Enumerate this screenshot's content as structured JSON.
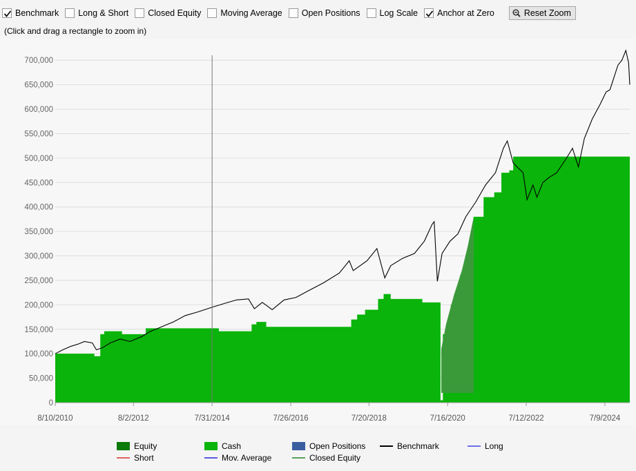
{
  "toolbar": {
    "checkboxes": [
      {
        "label": "Benchmark",
        "checked": true
      },
      {
        "label": "Long & Short",
        "checked": false
      },
      {
        "label": "Closed Equity",
        "checked": false
      },
      {
        "label": "Moving Average",
        "checked": false
      },
      {
        "label": "Open Positions",
        "checked": false
      },
      {
        "label": "Log Scale",
        "checked": false
      },
      {
        "label": "Anchor at Zero",
        "checked": true
      }
    ],
    "reset_zoom_label": "Reset Zoom",
    "reset_zoom_icon": "magnifier-minus-icon"
  },
  "hint": "(Click and drag a rectangle to zoom in)",
  "colors": {
    "equity": "#0a7a0a",
    "cash": "#0ab40a",
    "open_positions": "#3b5ea0",
    "benchmark": "#000000",
    "open_positions_overlay": "#3a9a3a",
    "grid": "#dedede",
    "cursor_line": "#777777",
    "short": "#e06060",
    "long": "#6f6fe8",
    "mov_average": "#5a5ae0",
    "closed_equity": "#5aa05a"
  },
  "chart_data": {
    "type": "area",
    "y_ticks": [
      "0",
      "50,000",
      "100,000",
      "150,000",
      "200,000",
      "250,000",
      "300,000",
      "350,000",
      "400,000",
      "450,000",
      "500,000",
      "550,000",
      "600,000",
      "650,000",
      "700,000"
    ],
    "x_ticks": [
      "8/10/2010",
      "8/2/2012",
      "7/31/2014",
      "7/26/2016",
      "7/20/2018",
      "7/16/2020",
      "7/12/2022",
      "7/9/2024"
    ],
    "x_tick_years": [
      2010.61,
      2012.59,
      2014.58,
      2016.57,
      2018.55,
      2020.54,
      2022.53,
      2024.52
    ],
    "xlim": [
      2010.61,
      2025.15
    ],
    "ylim": [
      0,
      730000
    ],
    "crosshair_year": 2014.58,
    "cash_steps": [
      [
        2010.61,
        100000
      ],
      [
        2011.6,
        95000
      ],
      [
        2011.75,
        140000
      ],
      [
        2011.85,
        146000
      ],
      [
        2012.3,
        140000
      ],
      [
        2012.9,
        152000
      ],
      [
        2014.75,
        146000
      ],
      [
        2015.58,
        160000
      ],
      [
        2015.7,
        165000
      ],
      [
        2015.95,
        155000
      ],
      [
        2018.1,
        170000
      ],
      [
        2018.25,
        180000
      ],
      [
        2018.45,
        190000
      ],
      [
        2018.78,
        212000
      ],
      [
        2018.92,
        222000
      ],
      [
        2019.1,
        212000
      ],
      [
        2019.9,
        205000
      ],
      [
        2020.36,
        5000
      ],
      [
        2020.42,
        140000
      ],
      [
        2020.62,
        200000
      ],
      [
        2020.85,
        260000
      ],
      [
        2021.05,
        300000
      ],
      [
        2021.2,
        380000
      ],
      [
        2021.45,
        420000
      ],
      [
        2021.72,
        430000
      ],
      [
        2021.9,
        470000
      ],
      [
        2022.1,
        475000
      ],
      [
        2022.2,
        503000
      ],
      [
        2025.15,
        503000
      ]
    ],
    "open_positions_band": [
      [
        2020.38,
        20000,
        110000
      ],
      [
        2020.5,
        20000,
        160000
      ],
      [
        2020.7,
        20000,
        220000
      ],
      [
        2020.9,
        20000,
        270000
      ],
      [
        2021.05,
        20000,
        320000
      ],
      [
        2021.15,
        20000,
        360000
      ],
      [
        2021.2,
        20000,
        380000
      ]
    ],
    "benchmark": [
      [
        2010.61,
        100000
      ],
      [
        2010.8,
        108000
      ],
      [
        2011.0,
        115000
      ],
      [
        2011.2,
        120000
      ],
      [
        2011.35,
        125000
      ],
      [
        2011.55,
        122000
      ],
      [
        2011.65,
        108000
      ],
      [
        2011.8,
        112000
      ],
      [
        2012.0,
        122000
      ],
      [
        2012.25,
        130000
      ],
      [
        2012.5,
        125000
      ],
      [
        2012.8,
        135000
      ],
      [
        2013.0,
        145000
      ],
      [
        2013.3,
        155000
      ],
      [
        2013.6,
        165000
      ],
      [
        2013.9,
        178000
      ],
      [
        2014.2,
        185000
      ],
      [
        2014.58,
        195000
      ],
      [
        2014.9,
        203000
      ],
      [
        2015.2,
        210000
      ],
      [
        2015.5,
        212000
      ],
      [
        2015.65,
        192000
      ],
      [
        2015.85,
        205000
      ],
      [
        2016.1,
        190000
      ],
      [
        2016.4,
        210000
      ],
      [
        2016.7,
        215000
      ],
      [
        2017.0,
        228000
      ],
      [
        2017.4,
        245000
      ],
      [
        2017.8,
        265000
      ],
      [
        2018.05,
        290000
      ],
      [
        2018.15,
        270000
      ],
      [
        2018.5,
        290000
      ],
      [
        2018.75,
        315000
      ],
      [
        2018.95,
        255000
      ],
      [
        2019.1,
        280000
      ],
      [
        2019.4,
        295000
      ],
      [
        2019.7,
        305000
      ],
      [
        2019.95,
        330000
      ],
      [
        2020.15,
        365000
      ],
      [
        2020.2,
        370000
      ],
      [
        2020.28,
        248000
      ],
      [
        2020.4,
        305000
      ],
      [
        2020.6,
        330000
      ],
      [
        2020.8,
        345000
      ],
      [
        2021.0,
        380000
      ],
      [
        2021.25,
        410000
      ],
      [
        2021.5,
        445000
      ],
      [
        2021.75,
        470000
      ],
      [
        2021.95,
        520000
      ],
      [
        2022.05,
        535000
      ],
      [
        2022.2,
        490000
      ],
      [
        2022.45,
        470000
      ],
      [
        2022.55,
        415000
      ],
      [
        2022.7,
        445000
      ],
      [
        2022.8,
        420000
      ],
      [
        2022.95,
        450000
      ],
      [
        2023.1,
        460000
      ],
      [
        2023.3,
        470000
      ],
      [
        2023.55,
        500000
      ],
      [
        2023.7,
        520000
      ],
      [
        2023.85,
        482000
      ],
      [
        2024.0,
        540000
      ],
      [
        2024.2,
        580000
      ],
      [
        2024.4,
        610000
      ],
      [
        2024.55,
        635000
      ],
      [
        2024.65,
        640000
      ],
      [
        2024.85,
        690000
      ],
      [
        2024.95,
        700000
      ],
      [
        2025.05,
        720000
      ],
      [
        2025.12,
        695000
      ],
      [
        2025.15,
        650000
      ]
    ]
  },
  "legend": [
    {
      "label": "Equity",
      "kind": "swatch",
      "color_key": "equity"
    },
    {
      "label": "Cash",
      "kind": "swatch",
      "color_key": "cash"
    },
    {
      "label": "Open Positions",
      "kind": "swatch",
      "color_key": "open_positions"
    },
    {
      "label": "Benchmark",
      "kind": "line",
      "color_key": "benchmark"
    },
    {
      "label": "Long",
      "kind": "line",
      "color_key": "long"
    },
    {
      "label": "Short",
      "kind": "line",
      "color_key": "short"
    },
    {
      "label": "Mov. Average",
      "kind": "line",
      "color_key": "mov_average"
    },
    {
      "label": "Closed Equity",
      "kind": "line",
      "color_key": "closed_equity"
    }
  ]
}
